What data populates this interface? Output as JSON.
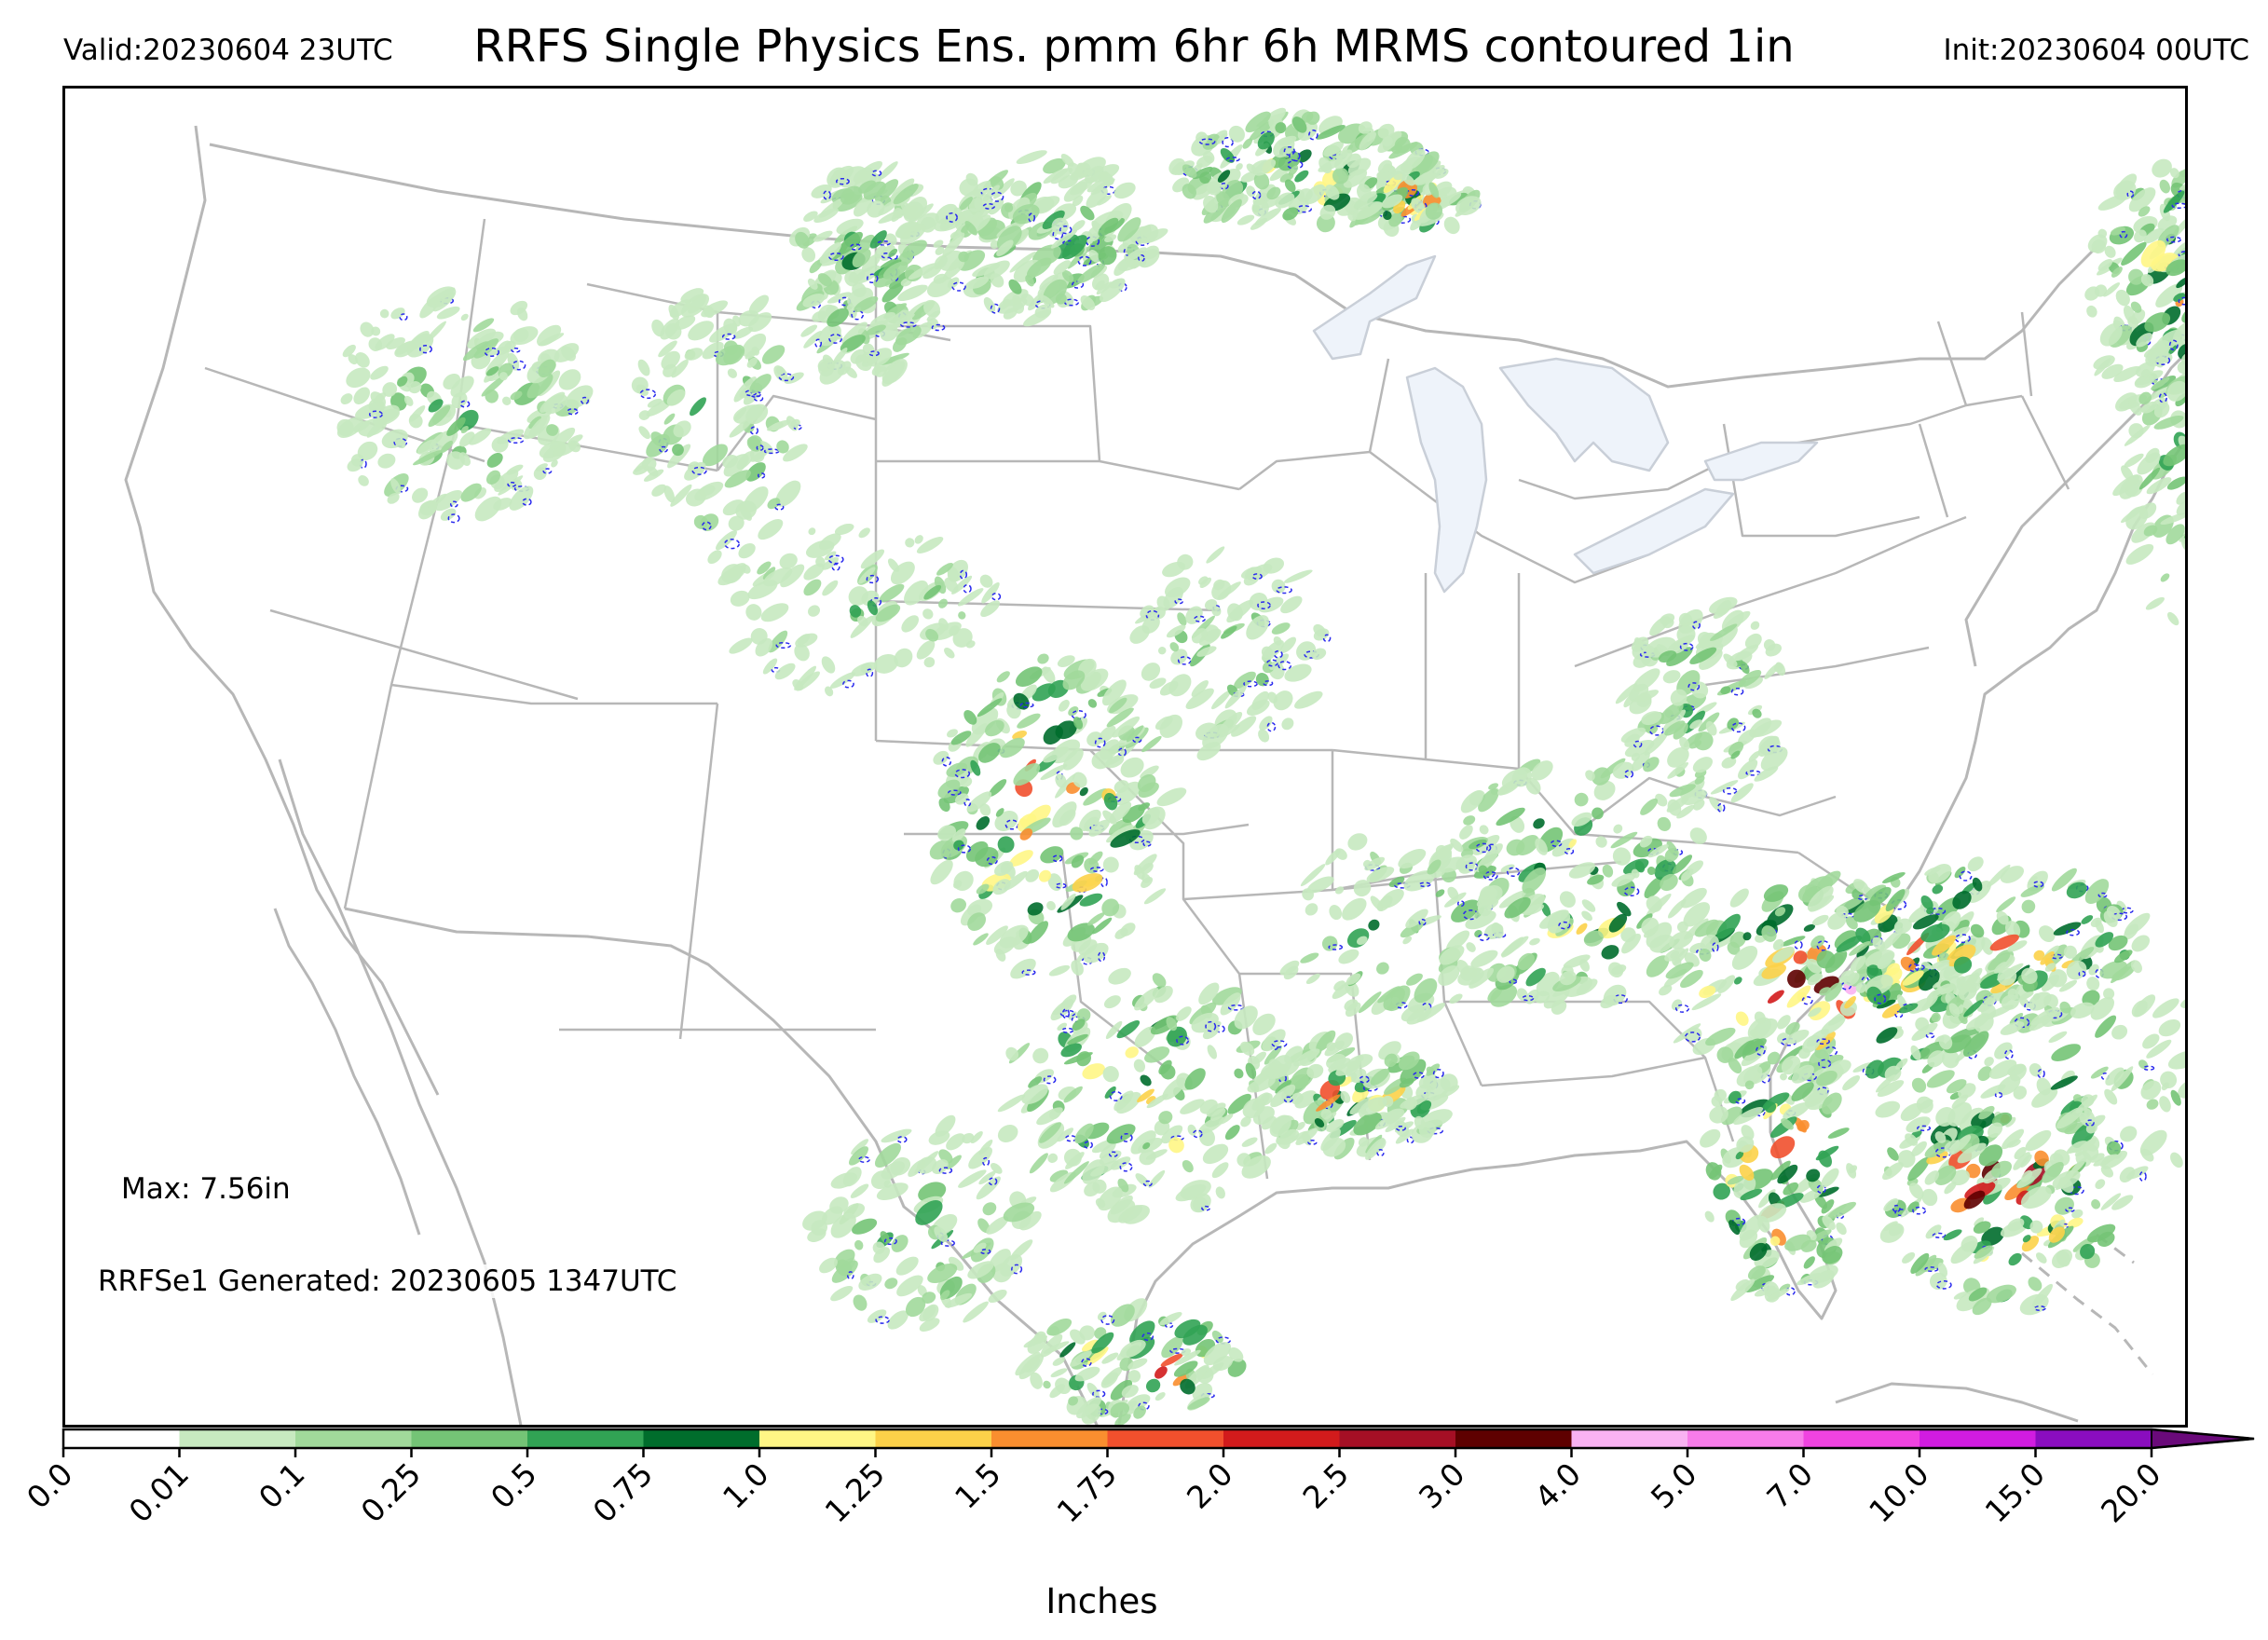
{
  "header": {
    "valid": "Valid:20230604 23UTC",
    "title": "RRFS Single Physics Ens. pmm 6hr 6h MRMS contoured 1in",
    "init": "Init:20230604 00UTC"
  },
  "annotations": {
    "max": "Max: 7.56in",
    "generated": "RRFSe1 Generated: 20230605 1347UTC"
  },
  "colorbar": {
    "label": "Inches",
    "ticks": [
      "0.0",
      "0.01",
      "0.1",
      "0.25",
      "0.5",
      "0.75",
      "1.0",
      "1.25",
      "1.5",
      "1.75",
      "2.0",
      "2.5",
      "3.0",
      "4.0",
      "5.0",
      "7.0",
      "10.0",
      "15.0",
      "20.0"
    ],
    "colors": [
      "#ffffff",
      "#c7e9c0",
      "#a1d99b",
      "#74c476",
      "#31a354",
      "#006d2c",
      "#fff685",
      "#fcd149",
      "#f98e2f",
      "#f1502d",
      "#d21b1c",
      "#a50f25",
      "#5e0000",
      "#f9b2f2",
      "#f77ce9",
      "#f043e0",
      "#d11ce0",
      "#8a0dbf"
    ],
    "extend_color": "#6a0a7a"
  },
  "map_colors": {
    "land": "#ffffff",
    "lakes": "#eef3fa",
    "borders": "#b7b7b7",
    "contour": "#2a2aee"
  }
}
